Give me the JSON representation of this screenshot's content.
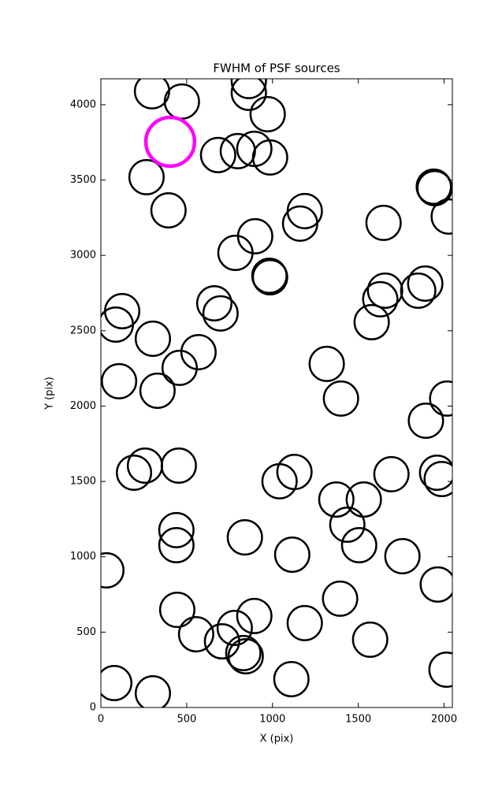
{
  "chart_data": {
    "type": "scatter",
    "title": "FWHM of PSF sources",
    "x_label": "X (pix)",
    "y_label": "Y (pix)",
    "xlim": [
      0,
      2048
    ],
    "ylim": [
      0,
      4172
    ],
    "xticks": [
      0,
      500,
      1000,
      1500,
      2000
    ],
    "yticks": [
      0,
      500,
      1000,
      1500,
      2000,
      2500,
      3000,
      3500,
      4000
    ],
    "series": [
      {
        "color": "#000000",
        "radius": 100,
        "x": [
          298,
          472,
          862,
          862,
          972,
          266,
          683,
          798,
          894,
          986,
          394,
          1188,
          1161,
          899,
          784,
          982,
          986,
          1940,
          1945,
          2027,
          1647,
          124,
          87,
          303,
          661,
          697,
          569,
          459,
          330,
          106,
          1316,
          1399,
          1578,
          1628,
          1656,
          1849,
          1890,
          1894,
          2018,
          193,
          257,
          454,
          1041,
          1128,
          1372,
          1532,
          1436,
          1505,
          1693,
          1959,
          1986,
          440,
          440,
          839,
          1115,
          1757,
          32,
          445,
          555,
          706,
          780,
          894,
          830,
          844,
          1188,
          1394,
          1569,
          1963,
          2014,
          78,
          303,
          1110
        ],
        "values": [
          4089,
          4021,
          4157,
          4079,
          3937,
          3519,
          3666,
          3692,
          3707,
          3650,
          3299,
          3294,
          3211,
          3127,
          3017,
          2865,
          2855,
          3456,
          3446,
          3258,
          3216,
          2630,
          2541,
          2447,
          2682,
          2615,
          2358,
          2254,
          2102,
          2165,
          2280,
          2050,
          2557,
          2709,
          2766,
          2766,
          2813,
          1903,
          2050,
          1558,
          1605,
          1605,
          1501,
          1563,
          1380,
          1380,
          1213,
          1077,
          1548,
          1558,
          1516,
          1177,
          1077,
          1129,
          1014,
          1004,
          910,
          648,
          486,
          439,
          528,
          607,
          361,
          340,
          560,
          722,
          450,
          816,
          251,
          162,
          94,
          188
        ]
      },
      {
        "color": "#ff00ff",
        "radius": 142,
        "x": [
          404
        ],
        "values": [
          3754
        ]
      }
    ]
  }
}
